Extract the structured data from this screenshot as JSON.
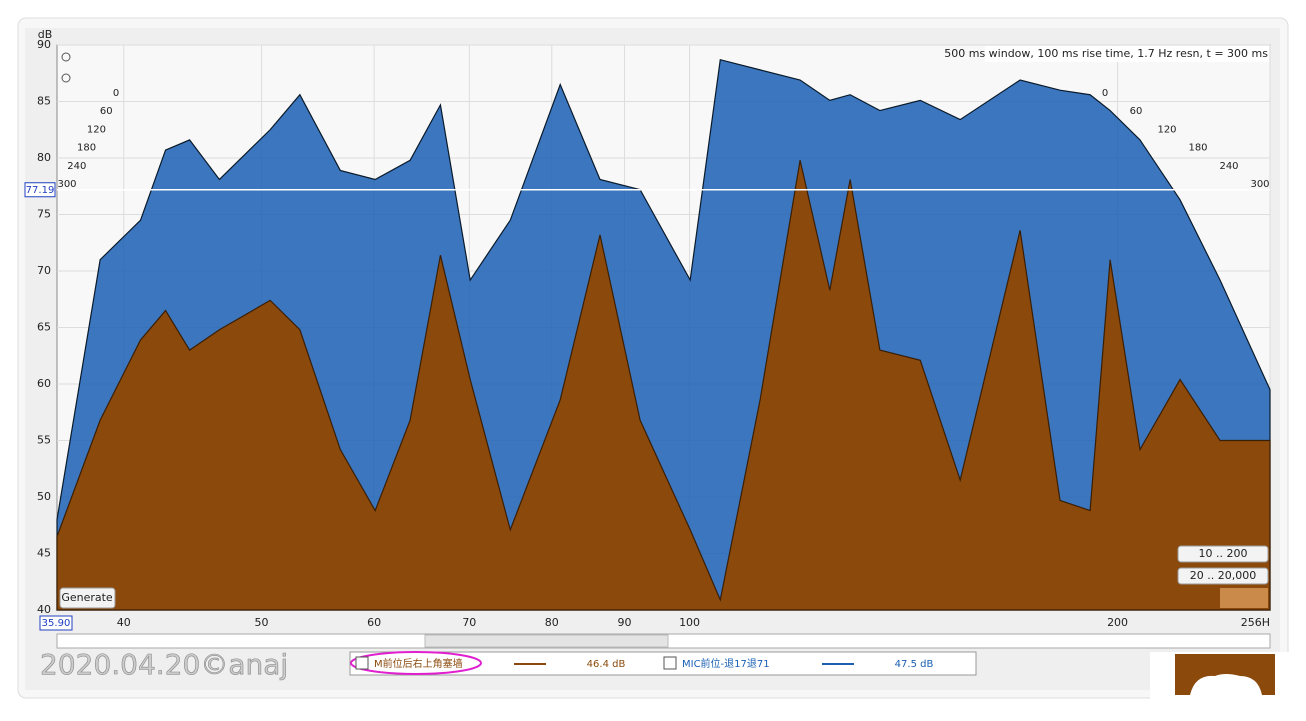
{
  "chart_data": {
    "type": "waterfall",
    "info": "500 ms window, 100 ms rise time,  1.7 Hz resn, t = 300 ms",
    "y_label": "dB",
    "x": [
      35.9,
      38.5,
      41.1,
      42.8,
      44.5,
      46.7,
      50.7,
      53.2,
      56.8,
      60.1,
      63.6,
      66.8,
      70.1,
      74.8,
      81.1,
      86.5,
      92.3,
      100.1,
      105.1,
      112.1,
      119.6,
      125.5,
      129.7,
      136.1,
      145.3,
      155.0,
      170.8,
      182.2,
      191.3,
      197.6,
      207.4,
      221.3,
      236.1,
      256
    ],
    "series": [
      {
        "name": "MIC前位-退17退71",
        "color": "#1a5fb4",
        "level": "47.5 dB",
        "values": [
          48.0,
          71.0,
          74.5,
          80.7,
          81.6,
          78.1,
          82.5,
          85.6,
          78.9,
          78.1,
          79.8,
          84.7,
          69.2,
          74.5,
          86.5,
          78.1,
          77.2,
          69.2,
          88.7,
          87.8,
          86.9,
          85.1,
          85.6,
          84.2,
          85.1,
          83.4,
          86.9,
          86.0,
          85.6,
          84.2,
          81.6,
          76.3,
          69.2,
          59.5
        ]
      },
      {
        "name": "M前位后右上角塞墙",
        "color": "#8b4a0c",
        "level": "46.4 dB",
        "values": [
          46.5,
          56.8,
          63.9,
          66.5,
          63.0,
          64.8,
          67.4,
          64.8,
          54.2,
          48.8,
          56.8,
          71.4,
          60.4,
          47.1,
          58.6,
          73.2,
          56.8,
          47.1,
          40.9,
          58.6,
          79.8,
          68.3,
          78.1,
          63.0,
          62.1,
          51.5,
          73.6,
          49.7,
          48.8,
          71.0,
          54.2,
          60.4,
          55.0,
          55.0
        ]
      }
    ],
    "xlim": [
      35.9,
      256
    ],
    "xticks": [
      40,
      50,
      60,
      70,
      80,
      90,
      100,
      200,
      {
        "value": 256,
        "label": "256H"
      }
    ],
    "ylim": [
      40,
      90
    ],
    "yticks": [
      40,
      45,
      50,
      55,
      60,
      65,
      70,
      75,
      80,
      85,
      90
    ],
    "zlim": [
      0,
      300
    ],
    "zticks": [
      0,
      60,
      120,
      180,
      240,
      300
    ],
    "cursor": {
      "y": 77.19,
      "x": {
        "value": 35.9,
        "label": "35.90"
      }
    },
    "grid": true
  },
  "buttons": {
    "generate": "Generate",
    "range_low": "10 .. 200",
    "range_full": "20 .. 20,000"
  },
  "watermark": "2020.04.20©anaj"
}
